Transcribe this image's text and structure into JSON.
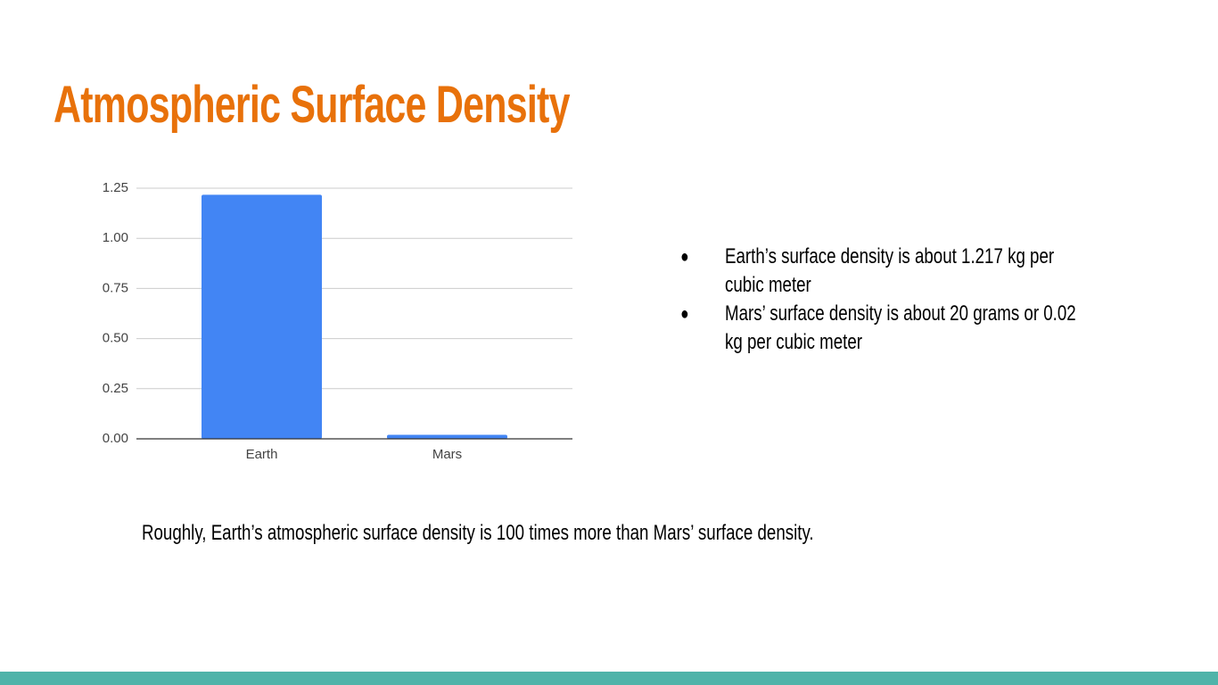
{
  "title": "Atmospheric Surface Density",
  "chart_data": {
    "type": "bar",
    "categories": [
      "Earth",
      "Mars"
    ],
    "values": [
      1.217,
      0.02
    ],
    "color": "#4285f4",
    "ylim": [
      0,
      1.25
    ],
    "yticks": [
      {
        "value": 0,
        "label": "0.00"
      },
      {
        "value": 0.25,
        "label": "0.25"
      },
      {
        "value": 0.5,
        "label": "0.50"
      },
      {
        "value": 0.75,
        "label": "0.75"
      },
      {
        "value": 1,
        "label": "1.00"
      },
      {
        "value": 1.25,
        "label": "1.25"
      }
    ],
    "grid": true
  },
  "bullets": [
    "Earth’s surface density is about 1.217 kg per cubic meter",
    "Mars’ surface density is about 20 grams or 0.02 kg per cubic meter"
  ],
  "note": "Roughly, Earth’s atmospheric surface density is 100 times more than Mars’ surface density."
}
